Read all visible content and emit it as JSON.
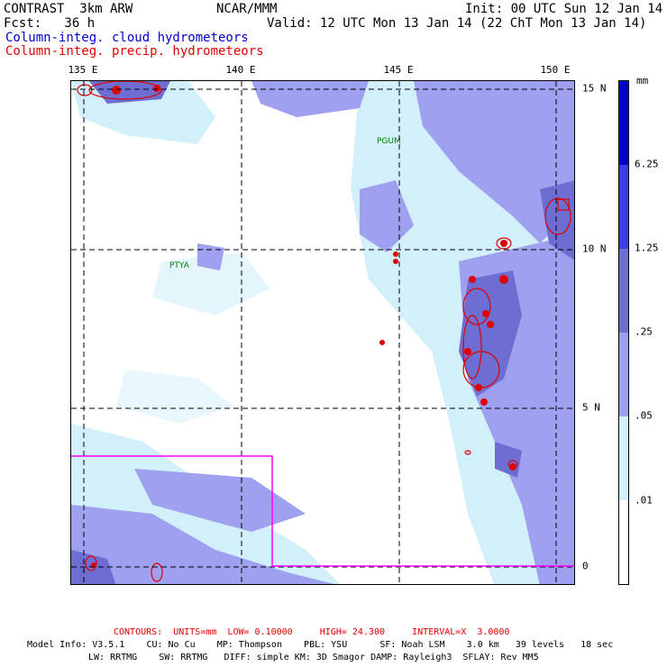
{
  "header": {
    "title": "CONTRAST  3km ARW",
    "org": "NCAR/MMM",
    "init": "Init: 00 UTC Sun 12 Jan 14",
    "fcst": "Fcst:   36 h",
    "valid": "Valid: 12 UTC Mon 13 Jan 14 (22 ChT Mon 13 Jan 14)",
    "field1": "Column-integ. cloud hydrometeors",
    "field2": "Column-integ. precip. hydrometeors"
  },
  "map": {
    "lon_labels": [
      "135 E",
      "140 E",
      "145 E",
      "150 E"
    ],
    "lat_labels": [
      "15 N",
      "10 N",
      "5 N",
      "0"
    ],
    "stations": [
      {
        "name": "PGUM"
      },
      {
        "name": "PTYA"
      }
    ]
  },
  "legend": {
    "unit": "mm",
    "levels": [
      "6.25",
      "1.25",
      ".25",
      ".05",
      ".01"
    ],
    "colors": [
      "#0000c8",
      "#3c3ce6",
      "#6e6ed2",
      "#a0a0f0",
      "#d2f0fa",
      "#ffffff"
    ]
  },
  "footer": {
    "contours": "CONTOURS:  UNITS=mm  LOW= 0.10000     HIGH= 24.300     INTERVAL=X  3.0000",
    "model_line1": "Model Info: V3.5.1    CU: No Cu    MP: Thompson    PBL: YSU      SF: Noah LSM    3.0 km   39 levels   18 sec",
    "model_line2": "LW: RRTMG    SW: RRTMG   DIFF: simple KM: 3D Smagor DAMP: Rayleigh3  SFLAY: Rev MM5"
  },
  "colors": {
    "cloud_text": "#0000cc",
    "precip_text": "#e00000",
    "box_line": "#ff00ff",
    "grid": "#000000",
    "station": "#008000"
  }
}
